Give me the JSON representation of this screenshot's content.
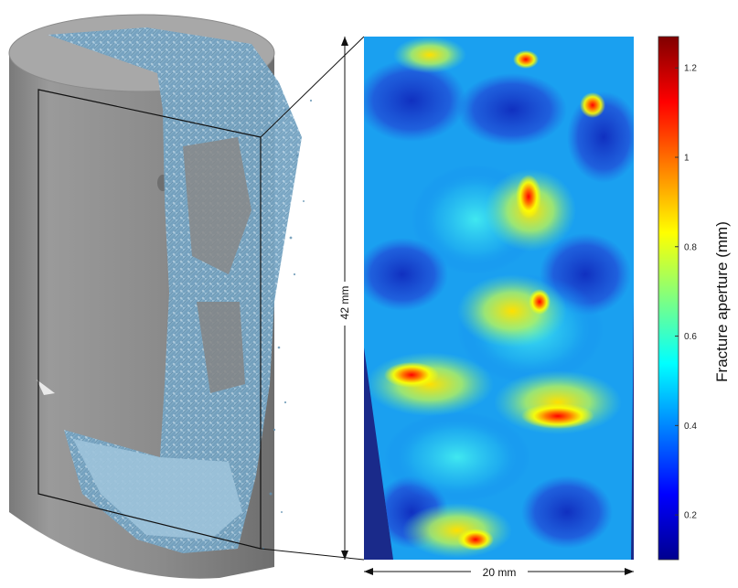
{
  "figure": {
    "height_label": "42 mm",
    "width_label": "20 mm"
  },
  "colorbar": {
    "title": "Fracture aperture (mm)",
    "ticks": [
      "1.2",
      "1",
      "0.8",
      "0.6",
      "0.4",
      "0.2"
    ],
    "tick_values": [
      1.2,
      1.0,
      0.8,
      0.6,
      0.4,
      0.2
    ],
    "range": [
      0.1,
      1.27
    ],
    "colormap": [
      "#00008f",
      "#0000ff",
      "#0080ff",
      "#00ffff",
      "#80ff80",
      "#ffff00",
      "#ff8000",
      "#ff0000",
      "#800000"
    ]
  },
  "colors": {
    "rock": "#8f8f8f",
    "rock_top": "#a6a6a6",
    "fracture": "#8fb8cf",
    "map_background": "#2a3fa8"
  }
}
